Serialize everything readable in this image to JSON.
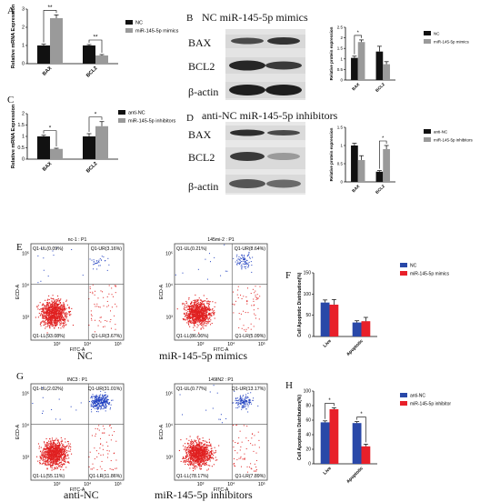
{
  "panel_letters": {
    "A": "A",
    "B": "B",
    "C": "C",
    "D": "D",
    "E": "E",
    "F": "F",
    "G": "G",
    "H": "H"
  },
  "panel_B_title": "NC  miR-145-5p mimics",
  "panel_D_title": "anti-NC  miR-145-5p inhibitors",
  "blot_labels": {
    "bax": "BAX",
    "bcl2": "BCL2",
    "actin": "β-actin"
  },
  "flow": {
    "E_nc": {
      "title": "nc-1 : P1",
      "ul": "Q1-UL(0.09%)",
      "ur": "Q1-UR(3.16%)",
      "ll": "Q1-LL(93.08%)",
      "lr": "Q1-LR(3.67%)",
      "caption": "NC"
    },
    "E_mim": {
      "title": "145mi-2 : P1",
      "ul": "Q1-UL(0.21%)",
      "ur": "Q1-UR(8.64%)",
      "ll": "Q1-LL(86.06%)",
      "lr": "Q1-LR(5.09%)",
      "caption": "miR-145-5p mimics"
    },
    "G_anc": {
      "title": "INC3 : P1",
      "ul": "Q1-UL(2.02%)",
      "ur": "Q1-UR(31.01%)",
      "ll": "Q1-LL(55.11%)",
      "lr": "Q1-LR(11.86%)",
      "caption": "anti-NC"
    },
    "G_inh": {
      "title": "149IN2 : P1",
      "ul": "Q1-UL(0.77%)",
      "ur": "Q1-UR(13.17%)",
      "ll": "Q1-LL(78.17%)",
      "lr": "Q1-LR(7.89%)",
      "caption": "miR-145-5p inhibitors"
    },
    "xaxis": "FITC-A",
    "yaxis": "ECD-A",
    "ticks": [
      "10³",
      "10⁴",
      "10⁵"
    ]
  },
  "chart_data": [
    {
      "id": "A",
      "type": "bar",
      "categories": [
        "BAX",
        "BCL2"
      ],
      "series": [
        {
          "name": "NC",
          "color": "#111111",
          "values": [
            1.0,
            1.0
          ],
          "err": [
            0.07,
            0.05
          ]
        },
        {
          "name": "miR-145-5p mimics",
          "color": "#9a9a9a",
          "values": [
            2.5,
            0.45
          ],
          "err": [
            0.18,
            0.05
          ]
        }
      ],
      "ylabel": "Relative mRNA Expression",
      "ylim": [
        0,
        3
      ],
      "yticks": [
        0,
        1,
        2,
        3
      ],
      "sig": [
        "**",
        "**"
      ]
    },
    {
      "id": "B",
      "type": "bar",
      "categories": [
        "BAX",
        "BCL2"
      ],
      "series": [
        {
          "name": "NC",
          "color": "#111111",
          "values": [
            1.05,
            1.35
          ],
          "err": [
            0.08,
            0.25
          ]
        },
        {
          "name": "miR-145-5p mimics",
          "color": "#9a9a9a",
          "values": [
            1.8,
            0.75
          ],
          "err": [
            0.1,
            0.12
          ]
        }
      ],
      "ylabel": "Relative protein expression",
      "ylim": [
        0,
        2.5
      ],
      "yticks": [
        0,
        0.5,
        1.0,
        1.5,
        2.0,
        2.5
      ],
      "sig": [
        "*",
        ""
      ]
    },
    {
      "id": "C",
      "type": "bar",
      "categories": [
        "BAX",
        "BCL2"
      ],
      "series": [
        {
          "name": "anti-NC",
          "color": "#111111",
          "values": [
            1.0,
            1.0
          ],
          "err": [
            0.05,
            0.12
          ]
        },
        {
          "name": "miR-145-5p inhibitors",
          "color": "#9a9a9a",
          "values": [
            0.45,
            1.45
          ],
          "err": [
            0.03,
            0.2
          ]
        }
      ],
      "ylabel": "Relative mRNA Expression",
      "ylim": [
        0,
        2.0
      ],
      "yticks": [
        0,
        0.5,
        1.0,
        1.5,
        2.0
      ],
      "sig": [
        "*",
        "*"
      ]
    },
    {
      "id": "D",
      "type": "bar",
      "categories": [
        "BAX",
        "BCL2"
      ],
      "series": [
        {
          "name": "anti-NC",
          "color": "#111111",
          "values": [
            1.0,
            0.28
          ],
          "err": [
            0.06,
            0.03
          ]
        },
        {
          "name": "miR-145-5p inhibitors",
          "color": "#9a9a9a",
          "values": [
            0.6,
            0.9
          ],
          "err": [
            0.12,
            0.1
          ]
        }
      ],
      "ylabel": "Relative protein expression",
      "ylim": [
        0,
        1.5
      ],
      "yticks": [
        0,
        0.5,
        1.0,
        1.5
      ],
      "sig": [
        "",
        "*"
      ]
    },
    {
      "id": "F",
      "type": "bar",
      "categories": [
        "Live",
        "Apoptotic"
      ],
      "series": [
        {
          "name": "NC",
          "color": "#2948a8",
          "values": [
            80,
            33
          ],
          "err": [
            6,
            4
          ]
        },
        {
          "name": "miR-145-5p mimics",
          "color": "#e8202a",
          "values": [
            75,
            36
          ],
          "err": [
            12,
            9
          ]
        }
      ],
      "ylabel": "Cell Apoptotic Distribution(%)",
      "ylim": [
        0,
        150
      ],
      "yticks": [
        0,
        50,
        100,
        150
      ],
      "sig": [
        "",
        ""
      ]
    },
    {
      "id": "H",
      "type": "bar",
      "categories": [
        "Live",
        "Apoptotic"
      ],
      "series": [
        {
          "name": "anti-NC",
          "color": "#2948a8",
          "values": [
            57,
            56
          ],
          "err": [
            2,
            2
          ]
        },
        {
          "name": "miR-145-5p inhibitor",
          "color": "#e8202a",
          "values": [
            75,
            24
          ],
          "err": [
            2,
            3
          ]
        }
      ],
      "ylabel": "Cell Apoptosis Distribution(%)",
      "ylim": [
        0,
        100
      ],
      "yticks": [
        0,
        20,
        40,
        60,
        80,
        100
      ],
      "sig": [
        "*",
        "*"
      ]
    }
  ]
}
